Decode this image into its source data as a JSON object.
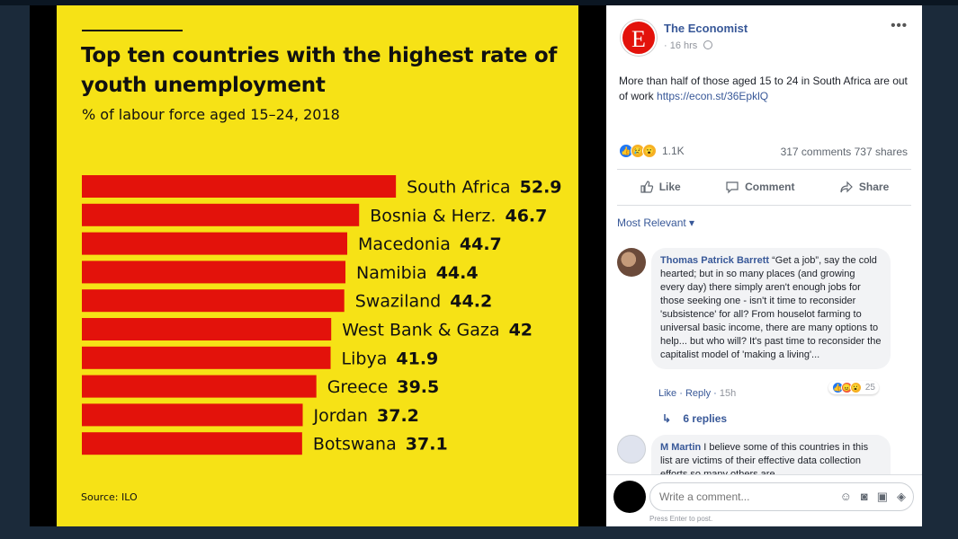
{
  "chart_data": {
    "type": "bar",
    "title": "Top ten countries with the highest rate of youth unemployment",
    "subtitle": "% of labour force aged 15–24, 2018",
    "source": "Source: ILO",
    "categories": [
      "South Africa",
      "Bosnia & Herz.",
      "Macedonia",
      "Namibia",
      "Swaziland",
      "West Bank & Gaza",
      "Libya",
      "Greece",
      "Jordan",
      "Botswana"
    ],
    "values": [
      52.9,
      46.7,
      44.7,
      44.4,
      44.2,
      42,
      41.9,
      39.5,
      37.2,
      37.1
    ],
    "value_labels": [
      "52.9",
      "46.7",
      "44.7",
      "44.4",
      "44.2",
      "42",
      "41.9",
      "39.5",
      "37.2",
      "37.1"
    ],
    "orientation": "horizontal",
    "bar_color": "#e3120b",
    "background": "#f6e216",
    "xlim": [
      0,
      80
    ]
  },
  "post": {
    "page_name": "The Economist",
    "logo_letter": "E",
    "time": "16 hrs",
    "more": "•••",
    "text": "More than half of those aged 15 to 24 in South Africa are out of work",
    "link": "https://econ.st/36EpklQ",
    "reaction_count": "1.1K",
    "comments_shares": "317 comments  737 shares",
    "like_label": "Like",
    "comment_label": "Comment",
    "share_label": "Share",
    "sort_label": "Most Relevant ▾"
  },
  "comments": [
    {
      "author": "Thomas Patrick Barrett",
      "text": "“Get a job”, say the cold hearted; but in so many places (and growing every day) there simply aren't enough jobs for those seeking one - isn't it time to reconsider 'subsistence' for all? From houselot farming to universal basic income, there are many options to help... but who will? It's past time to reconsider the capitalist model of 'making a living'...",
      "like": "Like",
      "reply": "Reply",
      "time": "15h",
      "reactions": "25",
      "replies": "6 replies"
    },
    {
      "author": "M Martin",
      "text": "I believe some of this countries in this list are victims of their effective data collection efforts so many others are"
    }
  ],
  "composer": {
    "placeholder": "Write a comment...",
    "hint": "Press Enter to post."
  },
  "colors": {
    "link": "#385898",
    "economist_red": "#e3120b"
  }
}
